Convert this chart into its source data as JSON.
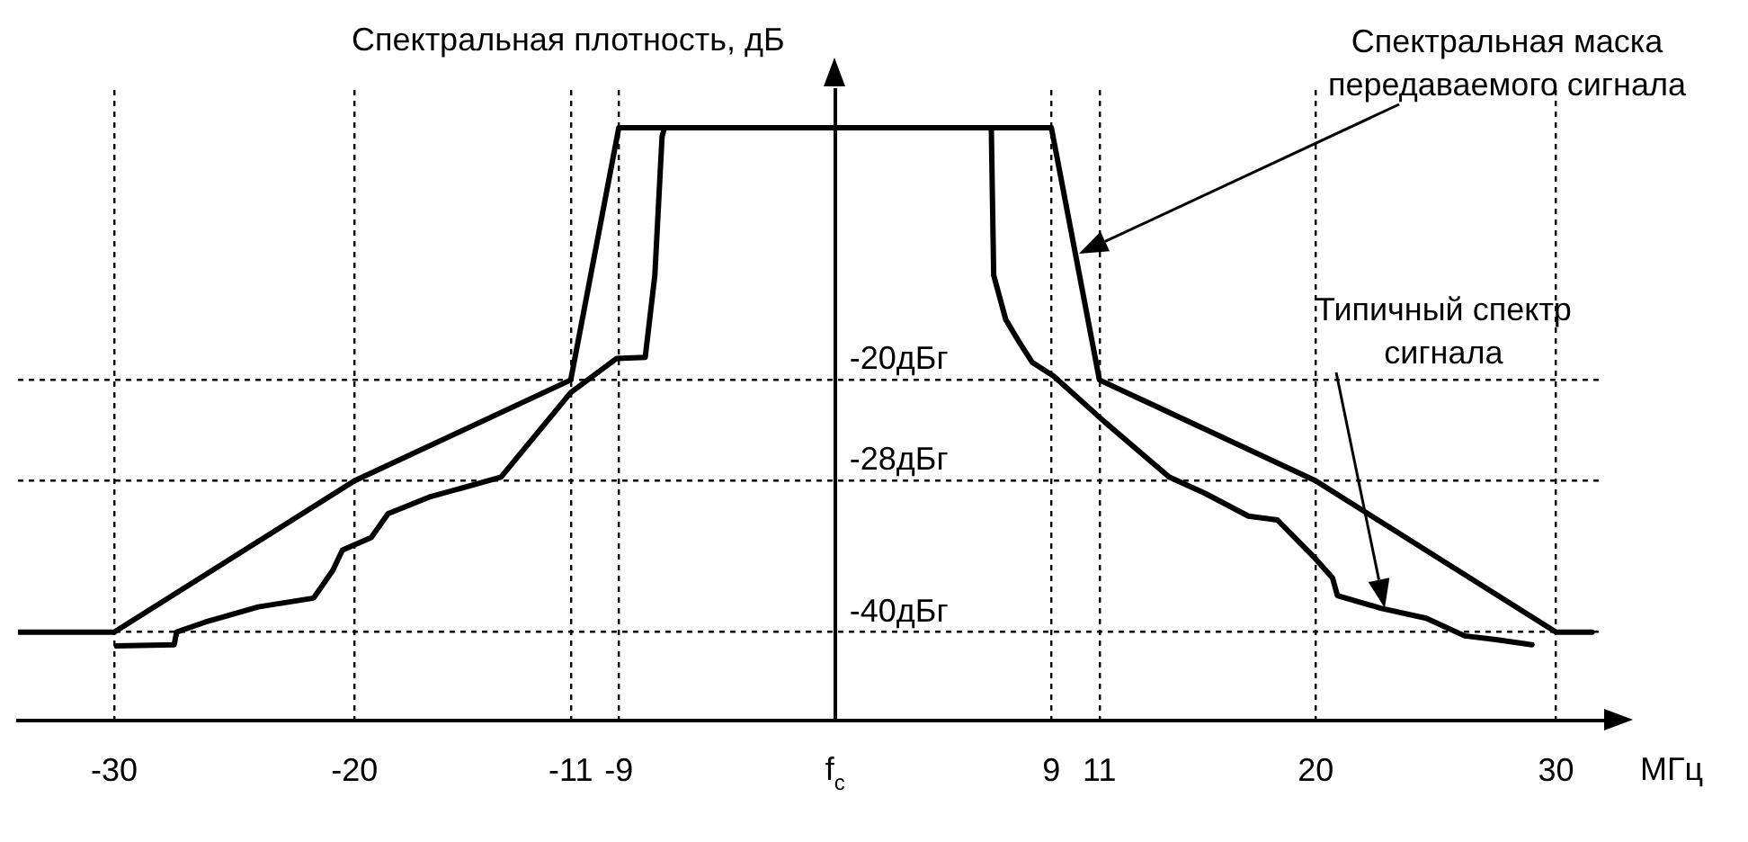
{
  "chart_data": {
    "type": "line",
    "xlabel": "МГц",
    "ylabel": "Спектральная плотность, дБ",
    "xlim": [
      -34,
      32
    ],
    "ylim": [
      -47,
      3
    ],
    "xticks": [
      -30,
      -20,
      -11,
      -9,
      {
        "value": 0,
        "label": "f$_{c}$"
      },
      9,
      11,
      20,
      30
    ],
    "yticks": [
      {
        "value": -20,
        "label": "-20дБг"
      },
      {
        "value": -28,
        "label": "-28дБг"
      },
      {
        "value": -40,
        "label": "-40дБг"
      }
    ],
    "grid": true,
    "legend": false,
    "marker": "none",
    "line_style": "solid",
    "series": [
      {
        "color": "#000000",
        "x": [
          -34,
          -30,
          -20,
          -11,
          -9,
          9,
          11,
          20,
          30,
          31.5
        ],
        "values": [
          -40,
          -40,
          -28,
          -20,
          0,
          0,
          -20,
          -28,
          -40,
          -40
        ]
      },
      {
        "color": "#000000",
        "x": [
          -29.9,
          -27.5,
          -27.4,
          -26.2,
          -24,
          -21.7,
          -20.9,
          -20.5,
          -19.3,
          -18.6,
          -16.9,
          -13.9,
          -11,
          -9.1,
          -7.9,
          -7.5,
          -7.2,
          -7.1,
          6.5,
          6.6,
          7.1,
          7.6,
          8.2,
          9.1,
          11.2,
          13.9,
          15.4,
          17.2,
          18.4,
          19.9,
          20.7,
          20.9,
          22.7,
          24.6,
          26.2,
          27.5,
          29
        ],
        "values": [
          -41.1,
          -41,
          -40,
          -39.2,
          -38,
          -37.3,
          -35.1,
          -33.5,
          -32.5,
          -30.6,
          -29.3,
          -27.7,
          -21,
          -18.3,
          -18.2,
          -11.7,
          -0.7,
          0,
          0,
          -11.7,
          -15.2,
          -16.8,
          -18.6,
          -19.7,
          -23.3,
          -27.7,
          -29,
          -30.8,
          -31.1,
          -34,
          -35.7,
          -37.1,
          -38.1,
          -38.9,
          -40.3,
          -40.6,
          -41
        ]
      }
    ],
    "annotations": [
      "Спектральная маска передаваемого сигнала",
      "Типичный спектр сигнала"
    ]
  }
}
